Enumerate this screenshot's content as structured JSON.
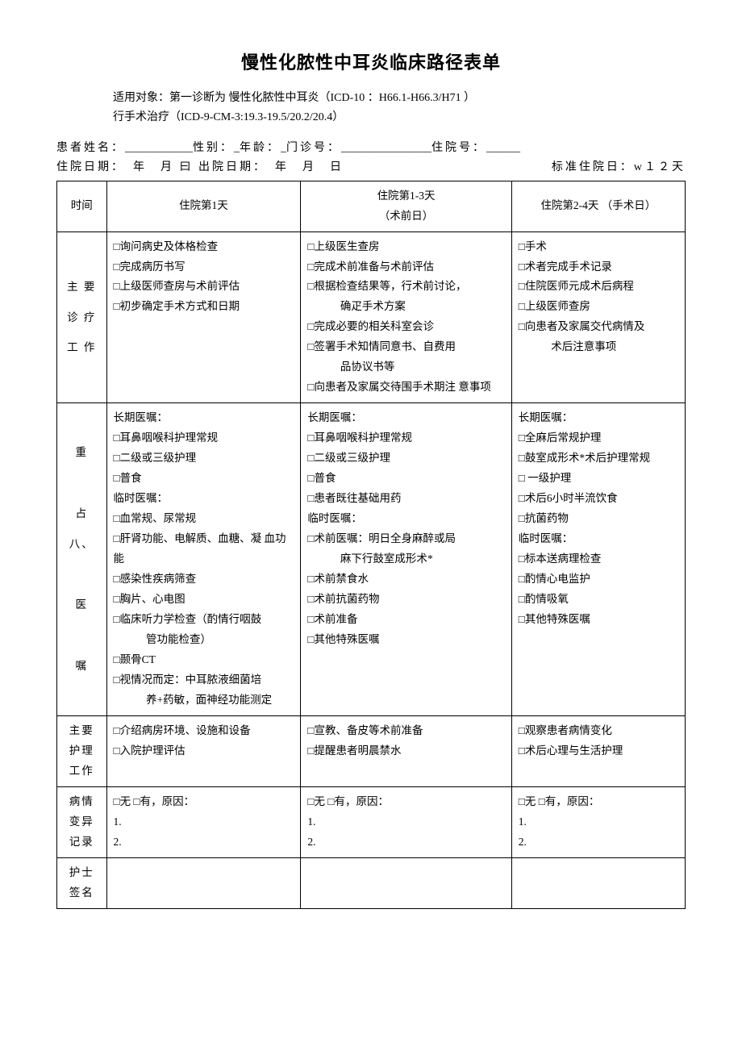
{
  "title": "慢性化脓性中耳炎临床路径表单",
  "subtitle_line1": "适用对象：第一诊断为 慢性化脓性中耳炎（ICD-10 ：H66.1-H66.3/H71 ）",
  "subtitle_line2": "行手术治疗（ICD-9-CM-3:19.3-19.5/20.2/20.4）",
  "info1_labels": {
    "name": "患者姓名：",
    "blank1": "____________",
    "sex": "性别：",
    "blank2": "_",
    "age": "年龄：",
    "blank3": "_",
    "clinic": "门诊号：",
    "blank4": "________________",
    "admit": "住院号：",
    "blank5": "______"
  },
  "info2": "住院日期：　年　月 曰 出院日期：　年　月　日",
  "info2_right": "标准住院日：w１２天",
  "headers": {
    "time": "时间",
    "day1": "住院第1天",
    "day2a": "住院第1-3天",
    "day2b": "（术前日）",
    "day3": "住院第2-4天 （手术日）"
  },
  "row_labels": {
    "work": "主要诊疗工作",
    "orders": "重　占八、　医　嘱",
    "nursing": "主要护理工作",
    "variance": "病情变异记录",
    "nurse_sign": "护士签名"
  },
  "work": {
    "d1": [
      "□询问病史及体格检查",
      "□完成病历书写",
      "□上级医师查房与术前评估",
      "□初步确定手术方式和日期"
    ],
    "d2": [
      "□上级医生查房",
      "□完成术前准备与术前评估",
      "□根据检查结果等，行术前讨论，",
      "　确疋手术方案",
      "□完成必要的相关科室会诊",
      "□签署手术知情同意书、自费用",
      "　品协议书等",
      "□向患者及家属交待围手术期注 意事项"
    ],
    "d3": [
      "□手术",
      "□术者完成手术记录",
      "□住院医师元成术后病程",
      "□上级医师查房",
      "□向患者及家属交代病情及",
      "　术后注意事项"
    ]
  },
  "orders": {
    "d1": [
      "长期医嘱：",
      "□耳鼻咽喉科护理常规",
      "□二级或三级护理",
      "□普食",
      "临时医嘱：",
      "□血常规、尿常规",
      "□肝肾功能、电解质、血糖、凝 血功能",
      "□感染性疾病筛查",
      "□胸片、心电图",
      "□临床听力学检查（酌情行咽鼓",
      "　管功能检查）",
      "□颞骨CT",
      "□视情况而定：中耳脓液细菌培",
      "　养+药敏，面神经功能测定"
    ],
    "d2": [
      "长期医嘱：",
      "□耳鼻咽喉科护理常规",
      "□二级或三级护理",
      "□普食",
      "□患者既往基础用药",
      "临时医嘱：",
      "□术前医嘱：明日全身麻醉或局",
      "　麻下行鼓室成形术*",
      "□术前禁食水",
      "□术前抗菌药物",
      "□术前准备",
      "□其他特殊医嘱"
    ],
    "d3": [
      "长期医嘱：",
      "□全麻后常规护理",
      "□鼓室成形术*术后护理常规",
      "□ 一级护理",
      "□术后6小时半流饮食",
      "□抗菌药物",
      "临时医嘱：",
      "□标本送病理检查",
      "□酌情心电监护",
      "□酌情吸氧",
      "□其他特殊医嘱"
    ]
  },
  "nursing": {
    "d1": [
      "□介绍病房环境、设施和设备",
      "□入院护理评估"
    ],
    "d2": [
      "□宣教、备皮等术前准备",
      "□提醒患者明晨禁水"
    ],
    "d3": [
      "□观察患者病情变化",
      "□术后心理与生活护理"
    ]
  },
  "variance": {
    "d1": [
      "□无 □有，原因：",
      "1.",
      "2."
    ],
    "d2": [
      "□无 □有，原因：",
      "1.",
      "2."
    ],
    "d3": [
      "□无 □有，原因：",
      "1.",
      "2."
    ]
  }
}
